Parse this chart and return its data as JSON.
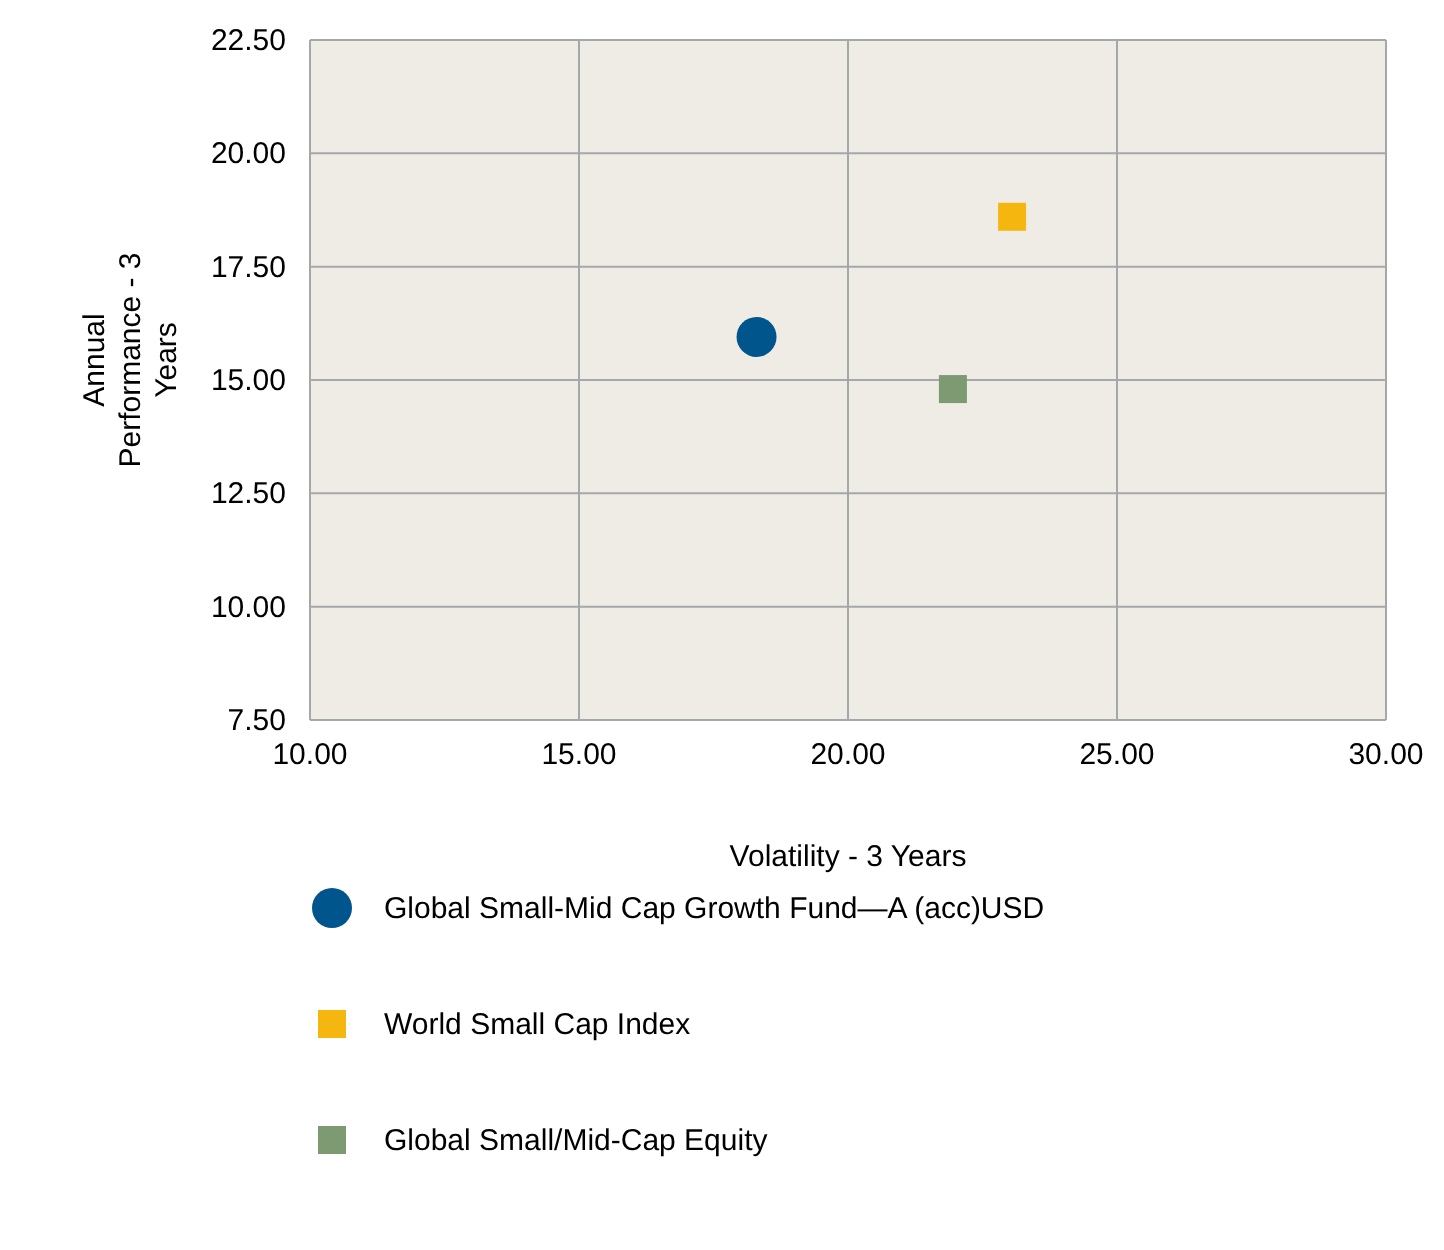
{
  "chart_data": {
    "type": "scatter",
    "xlabel": "Volatility - 3 Years",
    "ylabel": "Annual Performance - 3 Years",
    "xlim": [
      10,
      30
    ],
    "xticks": [
      {
        "value": 10,
        "label": "10.00"
      },
      {
        "value": 15,
        "label": "15.00"
      },
      {
        "value": 20,
        "label": "20.00"
      },
      {
        "value": 25,
        "label": "25.00"
      },
      {
        "value": 30,
        "label": "30.00"
      }
    ],
    "ylim": [
      7.5,
      22.5
    ],
    "yticks": [
      {
        "value": 7.5,
        "label": "7.50"
      },
      {
        "value": 10,
        "label": "10.00"
      },
      {
        "value": 12.5,
        "label": "12.50"
      },
      {
        "value": 15,
        "label": "15.00"
      },
      {
        "value": 17.5,
        "label": "17.50"
      },
      {
        "value": 20,
        "label": "20.00"
      },
      {
        "value": 22.5,
        "label": "22.50"
      }
    ],
    "grid": true,
    "legend": "bottom",
    "series": [
      {
        "name": "Global Small-Mid Cap Growth Fund—A (acc)USD",
        "color": "#00558c",
        "marker": "circle",
        "x": [
          18.3
        ],
        "values": [
          15.95
        ]
      },
      {
        "name": "World Small Cap Index",
        "color": "#f5b70f",
        "marker": "square",
        "x": [
          23.05
        ],
        "values": [
          18.6
        ]
      },
      {
        "name": "Global Small/Mid-Cap Equity",
        "color": "#7d9a72",
        "marker": "square",
        "x": [
          21.95
        ],
        "values": [
          14.8
        ]
      }
    ]
  }
}
